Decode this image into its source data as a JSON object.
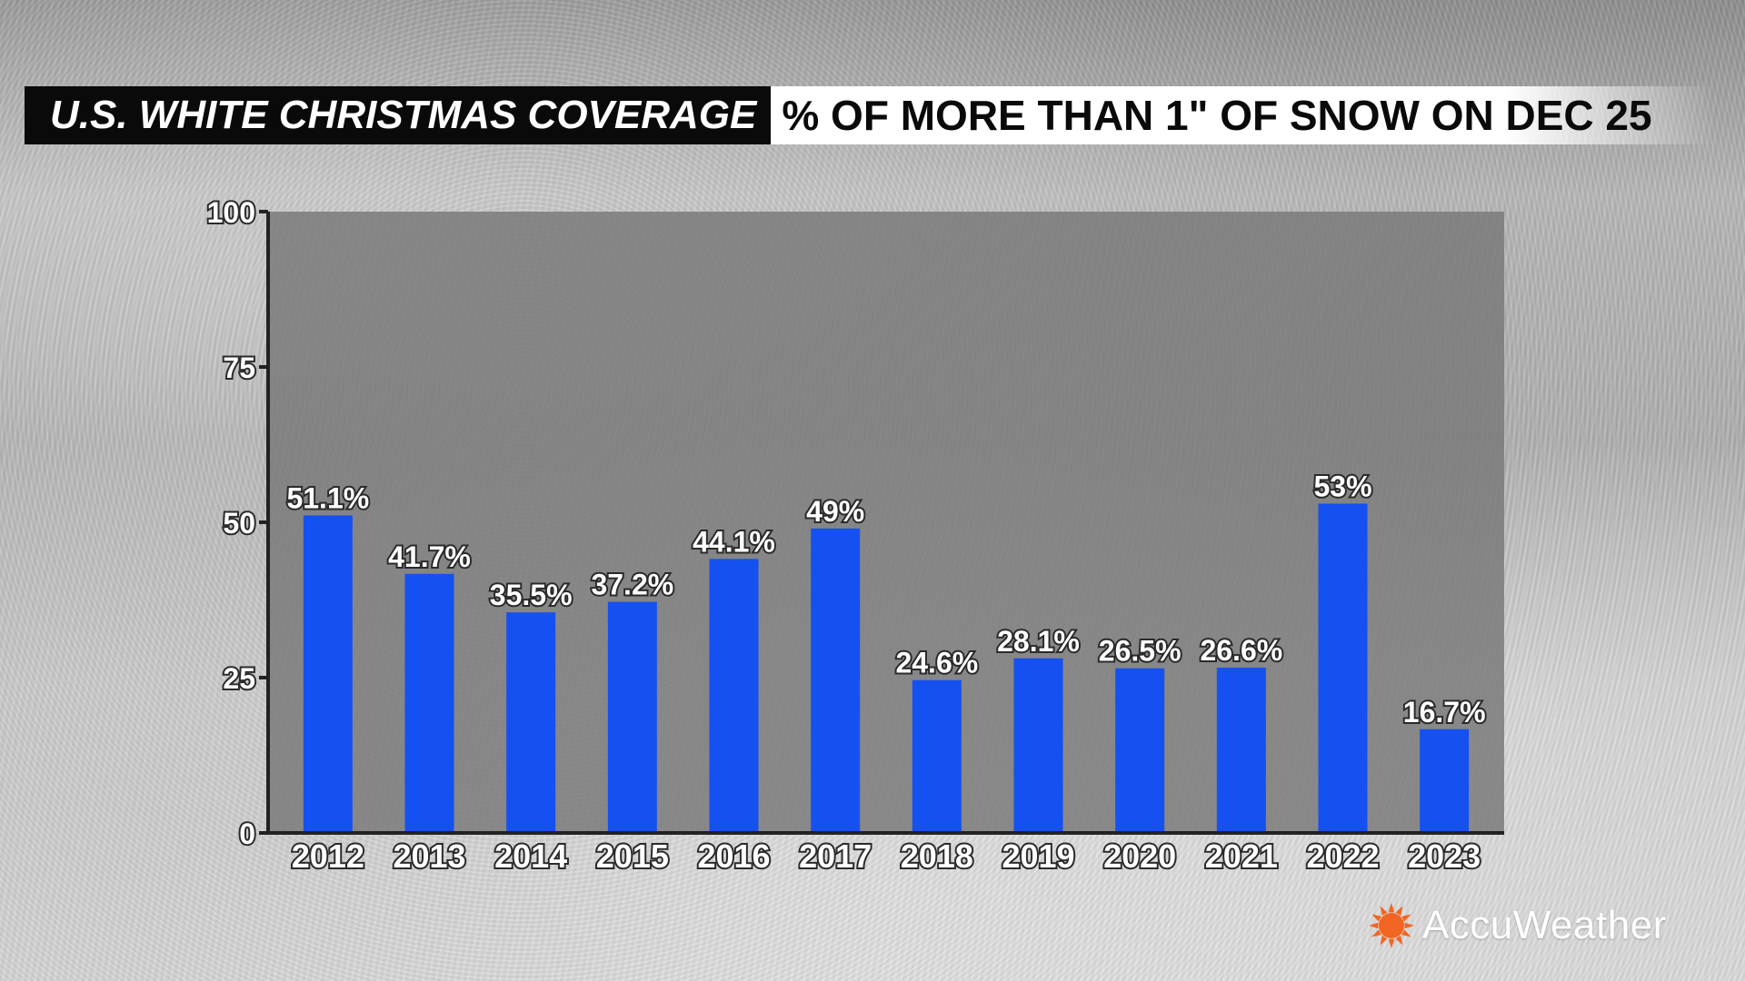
{
  "header": {
    "title_left": "U.S. WHITE CHRISTMAS COVERAGE",
    "title_right": "% OF MORE THAN 1\" OF SNOW ON DEC 25"
  },
  "brand": {
    "name": "AccuWeather",
    "icon": "sun-icon",
    "accent_color": "#f26522"
  },
  "colors": {
    "bar": "#1550f0",
    "plot_background": "#7a7a7a"
  },
  "chart_data": {
    "type": "bar",
    "title": "",
    "xlabel": "",
    "ylabel": "",
    "ylim": [
      0,
      100
    ],
    "yticks": [
      0,
      25,
      50,
      75,
      100
    ],
    "grid": false,
    "categories": [
      "2012",
      "2013",
      "2014",
      "2015",
      "2016",
      "2017",
      "2018",
      "2019",
      "2020",
      "2021",
      "2022",
      "2023"
    ],
    "values": [
      51.1,
      41.7,
      35.5,
      37.2,
      44.1,
      49,
      24.6,
      28.1,
      26.5,
      26.6,
      53,
      16.7
    ],
    "labels": [
      "51.1%",
      "41.7%",
      "35.5%",
      "37.2%",
      "44.1%",
      "49%",
      "24.6%",
      "28.1%",
      "26.5%",
      "26.6%",
      "53%",
      "16.7%"
    ]
  }
}
